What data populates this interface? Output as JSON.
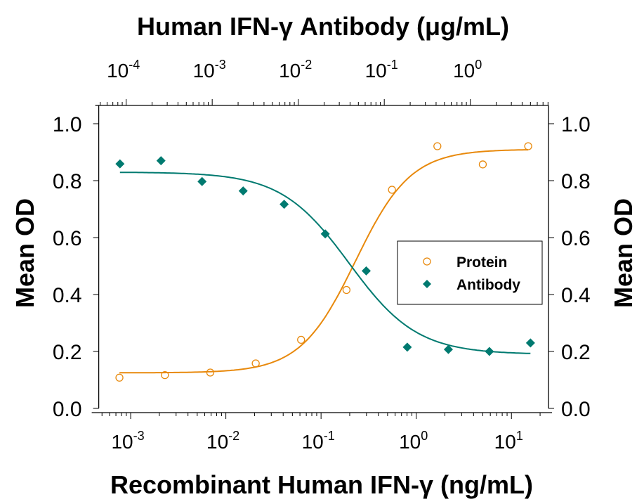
{
  "chart_data": {
    "type": "scatter",
    "top_xlabel": "Human IFN-γ Antibody (μg/mL)",
    "bottom_xlabel": "Recombinant Human IFN-γ (ng/mL)",
    "ylabel_left": "Mean OD",
    "ylabel_right": "Mean OD",
    "ylim": [
      0,
      1.08
    ],
    "yticks": [
      "0.0",
      "0.2",
      "0.4",
      "0.6",
      "0.8",
      "1.0"
    ],
    "bottom_axis": {
      "scale": "log",
      "xlim": [
        0.000462,
        24.5
      ],
      "ticks": [
        {
          "base": "10",
          "exp": "-3"
        },
        {
          "base": "10",
          "exp": "-2"
        },
        {
          "base": "10",
          "exp": "-1"
        },
        {
          "base": "10",
          "exp": "0"
        },
        {
          "base": "10",
          "exp": "1"
        }
      ]
    },
    "top_axis": {
      "scale": "log",
      "xlim": [
        4.8e-05,
        8.1
      ],
      "ticks": [
        {
          "base": "10",
          "exp": "-4"
        },
        {
          "base": "10",
          "exp": "-3"
        },
        {
          "base": "10",
          "exp": "-2"
        },
        {
          "base": "10",
          "exp": "-1"
        },
        {
          "base": "10",
          "exp": "0"
        }
      ]
    },
    "legend": {
      "placement": "center-right",
      "entries": [
        "Protein",
        "Antibody"
      ]
    },
    "series": [
      {
        "name": "Protein",
        "axis": "bottom",
        "marker": "open-circle",
        "color": "#E8890C",
        "x": [
          0.000762,
          0.00229,
          0.00686,
          0.0206,
          0.0617,
          0.185,
          0.556,
          1.667,
          5,
          15
        ],
        "y": [
          0.108,
          0.117,
          0.126,
          0.158,
          0.241,
          0.416,
          0.768,
          0.921,
          0.857,
          0.921
        ],
        "fit": {
          "bottom": 0.125,
          "top": 0.91,
          "ec50": 0.23,
          "hill": 1.5
        }
      },
      {
        "name": "Antibody",
        "axis": "top",
        "marker": "filled-diamond",
        "color": "#007A70",
        "x": [
          8.47e-05,
          0.000254,
          0.000762,
          0.00229,
          0.00686,
          0.0206,
          0.0617,
          0.185,
          0.556,
          1.667,
          5
        ],
        "y": [
          0.859,
          0.87,
          0.797,
          0.764,
          0.717,
          0.613,
          0.483,
          0.215,
          0.207,
          0.2,
          0.23
        ],
        "fit": {
          "bottom": 0.19,
          "top": 0.83,
          "ec50": 0.039,
          "hill": -1.1
        }
      }
    ]
  }
}
